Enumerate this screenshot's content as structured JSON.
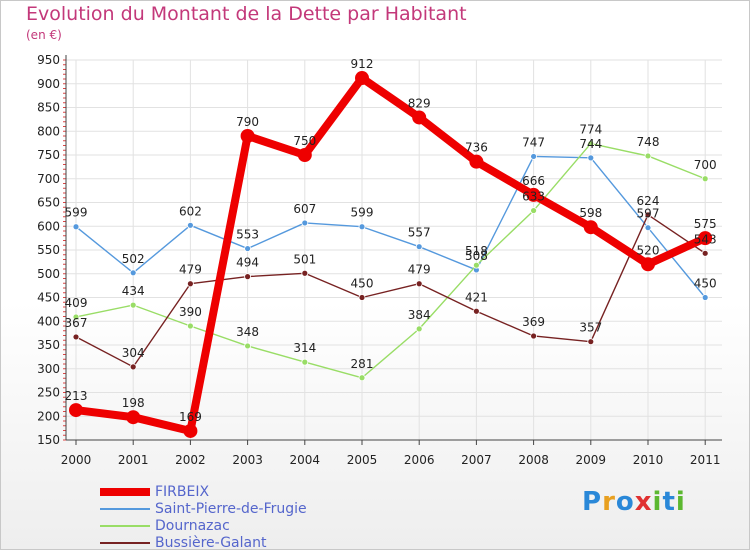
{
  "title": "Evolution du Montant de la Dette par Habitant",
  "unit_label": "(en €)",
  "logo": {
    "text": "Proxiti",
    "colors": [
      "#2a88d8",
      "#e8a020",
      "#2a88d8",
      "#e03030",
      "#5cb830",
      "#2a88d8",
      "#5cb830"
    ]
  },
  "chart_data": {
    "type": "line",
    "x": [
      "2000",
      "2001",
      "2002",
      "2003",
      "2004",
      "2005",
      "2006",
      "2007",
      "2008",
      "2009",
      "2010",
      "2011"
    ],
    "ylim": [
      150,
      950
    ],
    "yticks": [
      150,
      200,
      250,
      300,
      350,
      400,
      450,
      500,
      550,
      600,
      650,
      700,
      750,
      800,
      850,
      900,
      950
    ],
    "grid": true,
    "legend": "bottom-left",
    "series": [
      {
        "name": "FIRBEIX",
        "color": "#ee0000",
        "bold": true,
        "values": [
          213,
          198,
          169,
          790,
          750,
          912,
          829,
          736,
          666,
          598,
          520,
          575
        ]
      },
      {
        "name": "Saint-Pierre-de-Frugie",
        "color": "#5599dd",
        "bold": false,
        "values": [
          599,
          502,
          602,
          553,
          607,
          599,
          557,
          508,
          747,
          744,
          597,
          450
        ]
      },
      {
        "name": "Dournazac",
        "color": "#99dd66",
        "bold": false,
        "values": [
          409,
          434,
          390,
          348,
          314,
          281,
          384,
          518,
          633,
          774,
          748,
          700
        ]
      },
      {
        "name": "Bussière-Galant",
        "color": "#772222",
        "bold": false,
        "values": [
          367,
          304,
          479,
          494,
          501,
          450,
          479,
          421,
          369,
          357,
          624,
          543
        ]
      }
    ]
  }
}
